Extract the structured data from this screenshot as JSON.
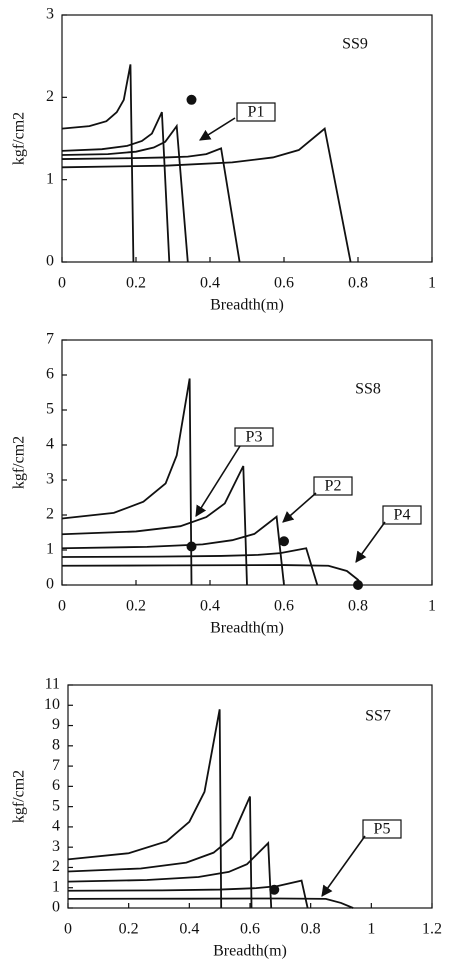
{
  "chart_data": [
    {
      "type": "line",
      "title": "SS9",
      "xlabel": "Breadth(m)",
      "ylabel": "kgf/cm2",
      "color": "#111111",
      "xlim": [
        0,
        1
      ],
      "ylim": [
        0,
        3
      ],
      "xticks": [
        0,
        0.2,
        0.4,
        0.6,
        0.8,
        1
      ],
      "yticks": [
        0,
        1,
        2,
        3
      ],
      "series": [
        {
          "x": [
            0,
            0.074,
            0.12,
            0.148,
            0.167,
            0.185,
            0.193
          ],
          "values": [
            1.62,
            1.65,
            1.71,
            1.82,
            1.97,
            2.4,
            0
          ]
        },
        {
          "x": [
            0,
            0.108,
            0.176,
            0.216,
            0.243,
            0.27,
            0.29
          ],
          "values": [
            1.35,
            1.37,
            1.41,
            1.47,
            1.56,
            1.82,
            0
          ]
        },
        {
          "x": [
            0,
            0.124,
            0.2,
            0.248,
            0.279,
            0.31,
            0.34
          ],
          "values": [
            1.3,
            1.31,
            1.34,
            1.39,
            1.46,
            1.65,
            0
          ]
        },
        {
          "x": [
            0,
            0.17,
            0.28,
            0.34,
            0.39,
            0.43,
            0.48
          ],
          "values": [
            1.25,
            1.26,
            1.27,
            1.28,
            1.31,
            1.38,
            0
          ]
        },
        {
          "x": [
            0,
            0.28,
            0.46,
            0.57,
            0.64,
            0.71,
            0.78
          ],
          "values": [
            1.15,
            1.17,
            1.21,
            1.27,
            1.36,
            1.62,
            0
          ]
        }
      ],
      "points": {
        "x": [
          0.35
        ],
        "values": [
          1.97
        ]
      },
      "annotations": [
        "P1"
      ]
    },
    {
      "type": "line",
      "title": "SS8",
      "xlabel": "Breadth(m)",
      "ylabel": "kgf/cm2",
      "color": "#111111",
      "xlim": [
        0,
        1
      ],
      "ylim": [
        0,
        7
      ],
      "xticks": [
        0,
        0.2,
        0.4,
        0.6,
        0.8,
        1
      ],
      "yticks": [
        0,
        1,
        2,
        3,
        4,
        5,
        6,
        7
      ],
      "series": [
        {
          "x": [
            0,
            0.14,
            0.22,
            0.28,
            0.31,
            0.345,
            0.35
          ],
          "values": [
            1.9,
            2.06,
            2.38,
            2.9,
            3.7,
            5.9,
            0
          ]
        },
        {
          "x": [
            0,
            0.2,
            0.32,
            0.39,
            0.44,
            0.49,
            0.5
          ],
          "values": [
            1.45,
            1.53,
            1.68,
            1.94,
            2.33,
            3.4,
            0
          ]
        },
        {
          "x": [
            0,
            0.23,
            0.38,
            0.46,
            0.52,
            0.58,
            0.6
          ],
          "values": [
            1.05,
            1.09,
            1.16,
            1.28,
            1.46,
            1.95,
            0
          ]
        },
        {
          "x": [
            0,
            0.26,
            0.43,
            0.53,
            0.59,
            0.66,
            0.69
          ],
          "values": [
            0.8,
            0.81,
            0.83,
            0.86,
            0.91,
            1.05,
            0
          ]
        },
        {
          "x": [
            0,
            0.3,
            0.6,
            0.72,
            0.77,
            0.8,
            0.81
          ],
          "values": [
            0.55,
            0.56,
            0.57,
            0.55,
            0.4,
            0.15,
            0
          ]
        }
      ],
      "points": {
        "x": [
          0.35,
          0.6,
          0.8
        ],
        "values": [
          1.1,
          1.25,
          0
        ]
      },
      "annotations": [
        "P3",
        "P2",
        "P4"
      ]
    },
    {
      "type": "line",
      "title": "SS7",
      "xlabel": "Breadth(m)",
      "ylabel": "kgf/cm2",
      "color": "#111111",
      "xlim": [
        0,
        1.2
      ],
      "ylim": [
        0,
        11
      ],
      "xticks": [
        0,
        0.2,
        0.4,
        0.6,
        0.8,
        1,
        1.2
      ],
      "yticks": [
        0,
        1,
        2,
        3,
        4,
        5,
        6,
        7,
        8,
        9,
        10,
        11
      ],
      "series": [
        {
          "x": [
            0,
            0.2,
            0.325,
            0.4,
            0.45,
            0.5,
            0.505
          ],
          "values": [
            2.4,
            2.7,
            3.29,
            4.25,
            5.73,
            9.8,
            0
          ]
        },
        {
          "x": [
            0,
            0.24,
            0.39,
            0.48,
            0.54,
            0.6,
            0.605
          ],
          "values": [
            1.8,
            1.95,
            2.24,
            2.73,
            3.47,
            5.5,
            0
          ]
        },
        {
          "x": [
            0,
            0.26,
            0.43,
            0.53,
            0.59,
            0.66,
            0.67
          ],
          "values": [
            1.3,
            1.38,
            1.53,
            1.78,
            2.16,
            3.2,
            0
          ]
        },
        {
          "x": [
            0,
            0.31,
            0.5,
            0.62,
            0.69,
            0.77,
            0.79
          ],
          "values": [
            0.85,
            0.87,
            0.91,
            0.98,
            1.08,
            1.35,
            0
          ]
        },
        {
          "x": [
            0,
            0.4,
            0.7,
            0.85,
            0.9,
            0.94
          ],
          "values": [
            0.45,
            0.46,
            0.47,
            0.45,
            0.25,
            0
          ]
        }
      ],
      "points": {
        "x": [
          0.68
        ],
        "values": [
          0.9
        ]
      },
      "annotations": [
        "P5"
      ]
    }
  ]
}
